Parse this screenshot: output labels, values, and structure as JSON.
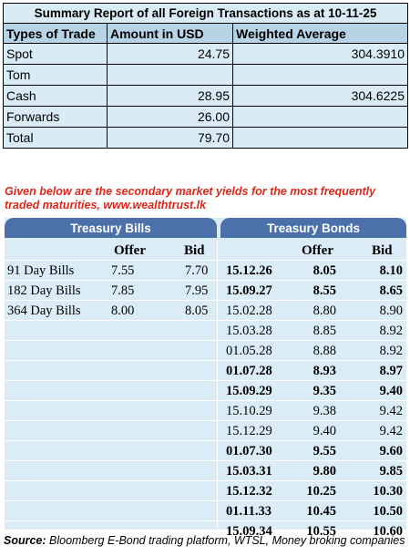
{
  "summary": {
    "title": "Summary Report of all Foreign Transactions as at 10-11-25",
    "headers": [
      "Types of Trade",
      "Amount in USD",
      "Weighted Average"
    ],
    "rows": [
      {
        "type": "Spot",
        "amount": "24.75",
        "wavg": "304.3910"
      },
      {
        "type": "Tom",
        "amount": "",
        "wavg": ""
      },
      {
        "type": "Cash",
        "amount": "28.95",
        "wavg": "304.6225"
      },
      {
        "type": "Forwards",
        "amount": "26.00",
        "wavg": ""
      },
      {
        "type": "Total",
        "amount": "79.70",
        "wavg": ""
      }
    ]
  },
  "notice": "Given below are the secondary market yields for the most frequently traded maturities, www.wealthtrust.lk",
  "bills": {
    "title": "Treasury Bills",
    "offer_label": "Offer",
    "bid_label": "Bid",
    "rows": [
      {
        "name": "91 Day Bills",
        "offer": "7.55",
        "bid": "7.70"
      },
      {
        "name": "182 Day Bills",
        "offer": "7.85",
        "bid": "7.95"
      },
      {
        "name": "364 Day Bills",
        "offer": "8.00",
        "bid": "8.05"
      }
    ]
  },
  "bonds": {
    "title": "Treasury Bonds",
    "offer_label": "Offer",
    "bid_label": "Bid",
    "rows": [
      {
        "date": "15.12.26",
        "offer": "8.05",
        "bid": "8.10",
        "bold": true
      },
      {
        "date": "15.09.27",
        "offer": "8.55",
        "bid": "8.65",
        "bold": true
      },
      {
        "date": "15.02.28",
        "offer": "8.80",
        "bid": "8.90",
        "bold": false
      },
      {
        "date": "15.03.28",
        "offer": "8.85",
        "bid": "8.92",
        "bold": false
      },
      {
        "date": "01.05.28",
        "offer": "8.88",
        "bid": "8.92",
        "bold": false
      },
      {
        "date": "01.07.28",
        "offer": "8.93",
        "bid": "8.97",
        "bold": true
      },
      {
        "date": "15.09.29",
        "offer": "9.35",
        "bid": "9.40",
        "bold": true
      },
      {
        "date": "15.10.29",
        "offer": "9.38",
        "bid": "9.42",
        "bold": false
      },
      {
        "date": "15.12.29",
        "offer": "9.40",
        "bid": "9.42",
        "bold": false
      },
      {
        "date": "01.07.30",
        "offer": "9.55",
        "bid": "9.60",
        "bold": true
      },
      {
        "date": "15.03.31",
        "offer": "9.80",
        "bid": "9.85",
        "bold": true
      },
      {
        "date": "15.12.32",
        "offer": "10.25",
        "bid": "10.30",
        "bold": true
      },
      {
        "date": "01.11.33",
        "offer": "10.45",
        "bid": "10.50",
        "bold": true
      },
      {
        "date": "15.09.34",
        "offer": "10.55",
        "bid": "10.60",
        "bold": true
      }
    ]
  },
  "source": {
    "label": "Source:",
    "text": " Bloomberg E-Bond trading platform, WTSL, Money broking companies"
  },
  "colors": {
    "header_bar": "#4b70aa",
    "panel_bg": "#daedf7",
    "summary_bg": "#d9ecf6",
    "summary_header_bg": "#b7d3e6",
    "notice_text": "#e0261b"
  }
}
